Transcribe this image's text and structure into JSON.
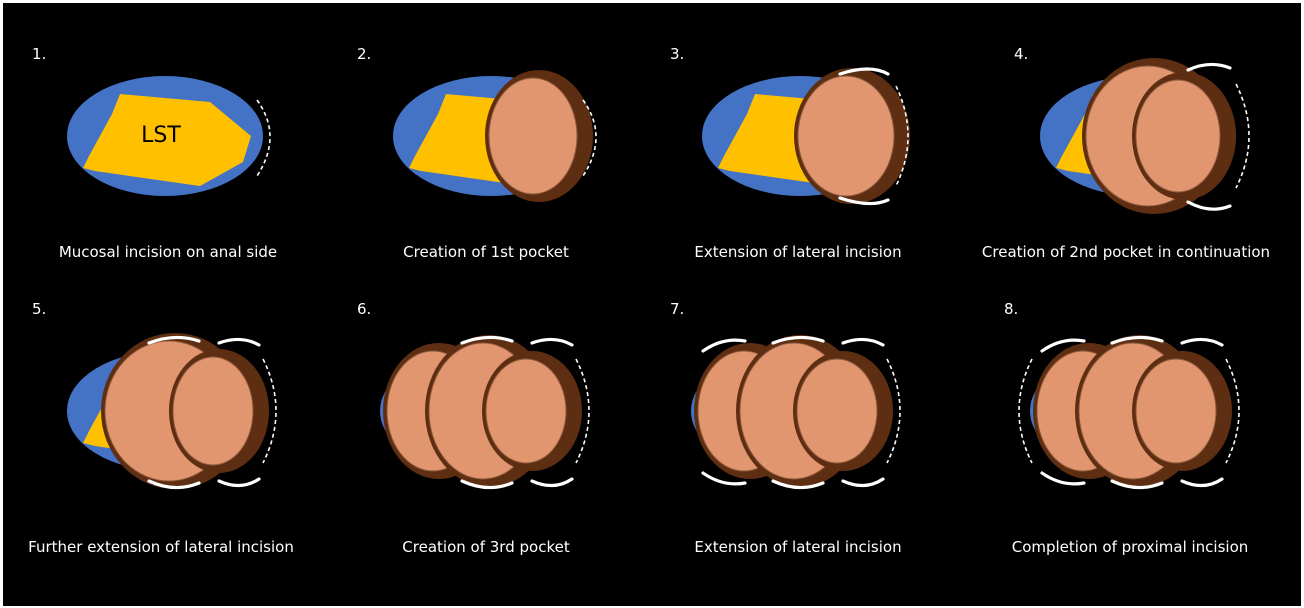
{
  "tumor_label": "LST",
  "colors": {
    "background": "#000000",
    "mucosa": "#4472C4",
    "tumor": "#FFC000",
    "pocket_outer": "#5E2E12",
    "pocket_inner": "#F4A57C",
    "incision_line": "#FFFFFF"
  },
  "steps": [
    {
      "number": "1.",
      "caption": "Mucosal incision on anal side",
      "icons": [
        "mucosa-icon",
        "tumor-icon",
        "dashed-incision-icon"
      ]
    },
    {
      "number": "2.",
      "caption": "Creation of 1st pocket",
      "icons": [
        "mucosa-icon",
        "tumor-icon",
        "pocket-icon",
        "dashed-incision-icon"
      ]
    },
    {
      "number": "3.",
      "caption": "Extension of lateral incision",
      "icons": [
        "mucosa-icon",
        "tumor-icon",
        "pocket-icon",
        "lateral-incision-icon"
      ]
    },
    {
      "number": "4.",
      "caption": "Creation of 2nd pocket in continuation",
      "icons": [
        "mucosa-icon",
        "tumor-icon",
        "pocket-icon",
        "lateral-incision-icon"
      ]
    },
    {
      "number": "5.",
      "caption": "Further extension of lateral incision",
      "icons": [
        "mucosa-icon",
        "tumor-icon",
        "pocket-icon",
        "lateral-incision-icon"
      ]
    },
    {
      "number": "6.",
      "caption": "Creation of 3rd pocket",
      "icons": [
        "mucosa-icon",
        "tumor-icon",
        "pocket-icon",
        "lateral-incision-icon"
      ]
    },
    {
      "number": "7.",
      "caption": "Extension of lateral incision",
      "icons": [
        "mucosa-icon",
        "tumor-icon",
        "pocket-icon",
        "lateral-incision-icon"
      ]
    },
    {
      "number": "8.",
      "caption": "Completion of proximal incision",
      "icons": [
        "mucosa-icon",
        "tumor-icon",
        "pocket-icon",
        "lateral-incision-icon",
        "dashed-incision-icon"
      ]
    }
  ]
}
